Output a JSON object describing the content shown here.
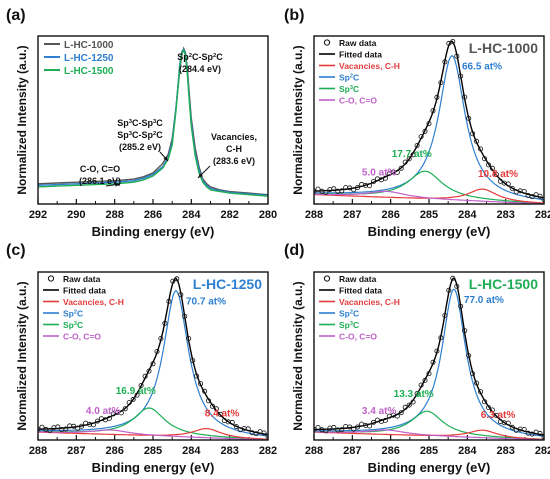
{
  "figure": {
    "background": "#ffffff",
    "colors": {
      "black": "#111111",
      "gray": "#555555",
      "blue": "#2e7fd0",
      "green": "#1fae55",
      "teal": "#1f7f88",
      "red": "#e53b3b",
      "magenta": "#c060c8",
      "fitted": "#000000"
    }
  },
  "chart_data": [
    {
      "type": "line",
      "panel_label": "(a)",
      "title": "",
      "xlabel": "Binding energy (eV)",
      "ylabel": "Normalized Intensity (a.u.)",
      "xlim": [
        292,
        280
      ],
      "x_ticks": [
        "292",
        "290",
        "288",
        "286",
        "284",
        "282",
        "280"
      ],
      "legend": {
        "position": "top-left",
        "entries": [
          {
            "label": "L-HC-1000",
            "color": "#555555"
          },
          {
            "label": "L-HC-1250",
            "color": "#2e7fd0"
          },
          {
            "label": "L-HC-1500",
            "color": "#1fae55"
          }
        ]
      },
      "series": [
        {
          "name": "L-HC-1000",
          "color": "#555555",
          "x": [
            292,
            291,
            290,
            289,
            288,
            287.5,
            287,
            286.5,
            286,
            285.5,
            285.2,
            285,
            284.8,
            284.6,
            284.5,
            284.4,
            284.3,
            284.2,
            284.1,
            284,
            283.8,
            283.6,
            283.4,
            283.2,
            283,
            282.5,
            282,
            281,
            280
          ],
          "y": [
            0.13,
            0.135,
            0.14,
            0.145,
            0.15,
            0.155,
            0.16,
            0.175,
            0.2,
            0.26,
            0.32,
            0.42,
            0.62,
            0.86,
            0.96,
            1.0,
            0.97,
            0.86,
            0.7,
            0.55,
            0.36,
            0.24,
            0.16,
            0.13,
            0.11,
            0.09,
            0.08,
            0.07,
            0.06
          ]
        },
        {
          "name": "L-HC-1250",
          "color": "#2e7fd0",
          "x": [
            292,
            291,
            290,
            289,
            288,
            287.5,
            287,
            286.5,
            286,
            285.5,
            285.2,
            285,
            284.8,
            284.6,
            284.5,
            284.4,
            284.3,
            284.2,
            284.1,
            284,
            283.8,
            283.6,
            283.4,
            283.2,
            283,
            282.5,
            282,
            281,
            280
          ],
          "y": [
            0.12,
            0.125,
            0.13,
            0.135,
            0.14,
            0.145,
            0.15,
            0.165,
            0.19,
            0.24,
            0.3,
            0.4,
            0.62,
            0.9,
            0.98,
            0.995,
            0.96,
            0.84,
            0.67,
            0.52,
            0.33,
            0.22,
            0.15,
            0.12,
            0.1,
            0.085,
            0.075,
            0.065,
            0.055
          ]
        },
        {
          "name": "L-HC-1500",
          "color": "#1fae55",
          "x": [
            292,
            291,
            290,
            289,
            288,
            287.5,
            287,
            286.5,
            286,
            285.5,
            285.2,
            285,
            284.8,
            284.6,
            284.5,
            284.4,
            284.3,
            284.2,
            284.1,
            284,
            283.8,
            283.6,
            283.4,
            283.2,
            283,
            282.5,
            282,
            281,
            280
          ],
          "y": [
            0.11,
            0.115,
            0.12,
            0.125,
            0.13,
            0.135,
            0.14,
            0.155,
            0.18,
            0.23,
            0.29,
            0.38,
            0.6,
            0.88,
            0.97,
            0.99,
            0.95,
            0.82,
            0.65,
            0.5,
            0.31,
            0.2,
            0.14,
            0.11,
            0.09,
            0.08,
            0.07,
            0.06,
            0.05
          ]
        }
      ],
      "annotations": [
        {
          "lines": [
            "Sp²C-Sp²C",
            "(284.4 eV)"
          ],
          "target_x": 284.4
        },
        {
          "lines": [
            "Sp³C-Sp³C",
            "Sp³C-Sp²C",
            "(285.2 eV)"
          ],
          "target_x": 285.2
        },
        {
          "lines": [
            "C-O, C=O",
            "(286.1 eV)"
          ],
          "target_x": 286.1
        },
        {
          "lines": [
            "Vacancies,",
            "C-H",
            "(283.6 eV)"
          ],
          "target_x": 283.6
        }
      ]
    },
    {
      "type": "line",
      "panel_label": "(b)",
      "sample_label": "L-HC-1000",
      "sample_label_color": "#555555",
      "xlabel": "Binding energy (eV)",
      "ylabel": "Normalized Intensity (a.u.)",
      "xlim": [
        288,
        282
      ],
      "x_ticks": [
        "288",
        "287",
        "286",
        "285",
        "284",
        "283",
        "282"
      ],
      "legend": {
        "position": "top-left",
        "entries": [
          {
            "label": "Raw data",
            "color": "#111111",
            "marker": "circle"
          },
          {
            "label": "Fitted data",
            "color": "#000000"
          },
          {
            "label": "Vacancies, C-H",
            "color": "#e53b3b"
          },
          {
            "label": "Sp²C",
            "color": "#2e7fd0"
          },
          {
            "label": "Sp³C",
            "color": "#1fae55"
          },
          {
            "label": "C-O, C=O",
            "color": "#c060c8"
          }
        ]
      },
      "components": [
        {
          "name": "Sp²C",
          "color": "#2e7fd0",
          "center": 284.4,
          "amplitude": 0.93,
          "width": 0.42,
          "percent": "66.5 at%"
        },
        {
          "name": "Sp³C",
          "color": "#1fae55",
          "center": 285.1,
          "amplitude": 0.18,
          "width": 0.55,
          "percent": "17.7 at%"
        },
        {
          "name": "Vacancies, C-H",
          "color": "#e53b3b",
          "center": 283.6,
          "amplitude": 0.08,
          "width": 0.45,
          "percent": "10.8 at%"
        },
        {
          "name": "C-O, C=O",
          "color": "#c060c8",
          "center": 286.1,
          "amplitude": 0.04,
          "width": 0.6,
          "percent": "5.0 at%"
        }
      ],
      "baseline": [
        0.06,
        0.0
      ]
    },
    {
      "type": "line",
      "panel_label": "(c)",
      "sample_label": "L-HC-1250",
      "sample_label_color": "#2e7fd0",
      "xlabel": "Binding energy (eV)",
      "ylabel": "Normalized Intensity (a.u.)",
      "xlim": [
        288,
        282
      ],
      "x_ticks": [
        "288",
        "287",
        "286",
        "285",
        "284",
        "283",
        "282"
      ],
      "legend": {
        "position": "top-left",
        "entries": [
          {
            "label": "Raw data",
            "color": "#111111",
            "marker": "circle"
          },
          {
            "label": "Fitted data",
            "color": "#000000"
          },
          {
            "label": "Vacancies, C-H",
            "color": "#e53b3b"
          },
          {
            "label": "Sp²C",
            "color": "#2e7fd0"
          },
          {
            "label": "Sp³C",
            "color": "#1fae55"
          },
          {
            "label": "C-O, C=O",
            "color": "#c060c8"
          }
        ]
      },
      "components": [
        {
          "name": "Sp²C",
          "color": "#2e7fd0",
          "center": 284.4,
          "amplitude": 0.94,
          "width": 0.4,
          "percent": "70.7 at%"
        },
        {
          "name": "Sp³C",
          "color": "#1fae55",
          "center": 285.1,
          "amplitude": 0.18,
          "width": 0.5,
          "percent": "16.9 at%"
        },
        {
          "name": "Vacancies, C-H",
          "color": "#e53b3b",
          "center": 283.6,
          "amplitude": 0.06,
          "width": 0.45,
          "percent": "8.4 at%"
        },
        {
          "name": "C-O, C=O",
          "color": "#c060c8",
          "center": 286.1,
          "amplitude": 0.03,
          "width": 0.6,
          "percent": "4.0 at%"
        }
      ],
      "baseline": [
        0.05,
        0.0
      ]
    },
    {
      "type": "line",
      "panel_label": "(d)",
      "sample_label": "L-HC-1500",
      "sample_label_color": "#1fae55",
      "xlabel": "Binding energy (eV)",
      "ylabel": "Normalized Intensity (a.u.)",
      "xlim": [
        288,
        282
      ],
      "x_ticks": [
        "288",
        "287",
        "286",
        "285",
        "284",
        "283",
        "282"
      ],
      "legend": {
        "position": "top-left",
        "entries": [
          {
            "label": "Raw data",
            "color": "#111111",
            "marker": "circle"
          },
          {
            "label": "Fitted data",
            "color": "#000000"
          },
          {
            "label": "Vacancies, C-H",
            "color": "#e53b3b"
          },
          {
            "label": "Sp²C",
            "color": "#2e7fd0"
          },
          {
            "label": "Sp³C",
            "color": "#1fae55"
          },
          {
            "label": "C-O, C=O",
            "color": "#c060c8"
          }
        ]
      },
      "components": [
        {
          "name": "Sp²C",
          "color": "#2e7fd0",
          "center": 284.35,
          "amplitude": 0.95,
          "width": 0.38,
          "percent": "77.0 at%"
        },
        {
          "name": "Sp³C",
          "color": "#1fae55",
          "center": 285.05,
          "amplitude": 0.16,
          "width": 0.5,
          "percent": "13.3 at%"
        },
        {
          "name": "Vacancies, C-H",
          "color": "#e53b3b",
          "center": 283.6,
          "amplitude": 0.05,
          "width": 0.45,
          "percent": "6.3 at%"
        },
        {
          "name": "C-O, C=O",
          "color": "#c060c8",
          "center": 286.1,
          "amplitude": 0.03,
          "width": 0.6,
          "percent": "3.4 at%"
        }
      ],
      "baseline": [
        0.05,
        0.0
      ]
    }
  ]
}
